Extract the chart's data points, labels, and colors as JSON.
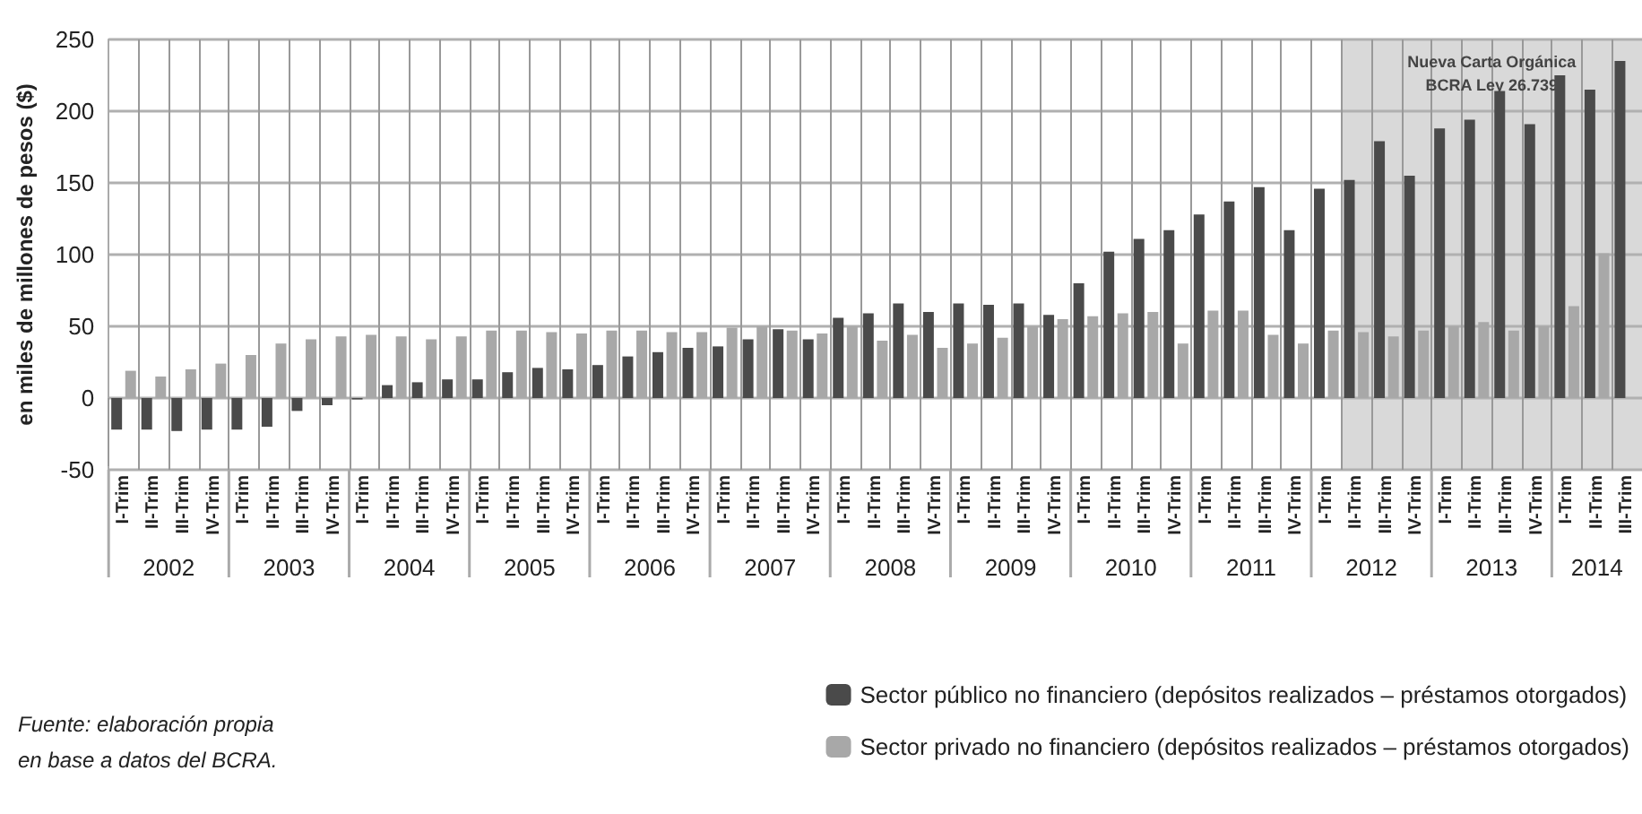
{
  "chart_data": {
    "type": "bar",
    "ylabel": "en miles de millones de pesos ($)",
    "categories": [
      "I-Trim",
      "II-Trim",
      "III-Trim",
      "IV-Trim",
      "I-Trim",
      "II-Trim",
      "III-Trim",
      "IV-Trim",
      "I-Trim",
      "II-Trim",
      "III-Trim",
      "IV-Trim",
      "I-Trim",
      "II-Trim",
      "III-Trim",
      "IV-Trim",
      "I-Trim",
      "II-Trim",
      "III-Trim",
      "IV-Trim",
      "I-Trim",
      "II-Trim",
      "III-Trim",
      "IV-Trim",
      "I-Trim",
      "II-Trim",
      "III-Trim",
      "IV-Trim",
      "I-Trim",
      "II-Trim",
      "III-Trim",
      "IV-Trim",
      "I-Trim",
      "II-Trim",
      "III-Trim",
      "IV-Trim",
      "I-Trim",
      "II-Trim",
      "III-Trim",
      "IV-Trim",
      "I-Trim",
      "II-Trim",
      "III-Trim",
      "IV-Trim",
      "I-Trim",
      "II-Trim",
      "III-Trim",
      "IV-Trim",
      "I-Trim",
      "II-Trim",
      "III-Trim"
    ],
    "series": [
      {
        "name": "Sector público no financiero (depósitos realizados – préstamos otorgados)",
        "color": "#4a4a4a",
        "values": [
          -22,
          -22,
          -23,
          -22,
          -22,
          -20,
          -9,
          -5,
          -1,
          9,
          11,
          13,
          13,
          18,
          21,
          20,
          23,
          29,
          32,
          35,
          36,
          41,
          48,
          41,
          56,
          59,
          66,
          60,
          66,
          65,
          66,
          58,
          80,
          102,
          111,
          117,
          128,
          137,
          147,
          117,
          146,
          152,
          179,
          155,
          188,
          194,
          214,
          191,
          225,
          215,
          235
        ]
      },
      {
        "name": "Sector privado no financiero (depósitos realizados – préstamos otorgados)",
        "color": "#a8a8a8",
        "values": [
          19,
          15,
          20,
          24,
          30,
          38,
          41,
          43,
          44,
          43,
          41,
          43,
          47,
          47,
          46,
          45,
          47,
          47,
          46,
          46,
          49,
          50,
          47,
          45,
          50,
          40,
          44,
          35,
          38,
          42,
          50,
          55,
          57,
          59,
          60,
          38,
          61,
          61,
          44,
          38,
          47,
          46,
          43,
          47,
          50,
          53,
          47,
          50,
          64,
          101,
          null
        ]
      }
    ],
    "ylim": [
      -50,
      250
    ],
    "yticks": [
      -50,
      0,
      50,
      100,
      150,
      200,
      250
    ],
    "grid": "y",
    "legend": "bottom right",
    "annotations": [
      "2002",
      "2003",
      "2004",
      "2005",
      "2006",
      "2007",
      "2008",
      "2009",
      "2010",
      "2011",
      "2012",
      "2013",
      "2014",
      "Nueva Carta Orgánica\nBCRA Ley 26.739",
      "Fuente: elaboración propia\nen base a datos del BCRA."
    ]
  }
}
